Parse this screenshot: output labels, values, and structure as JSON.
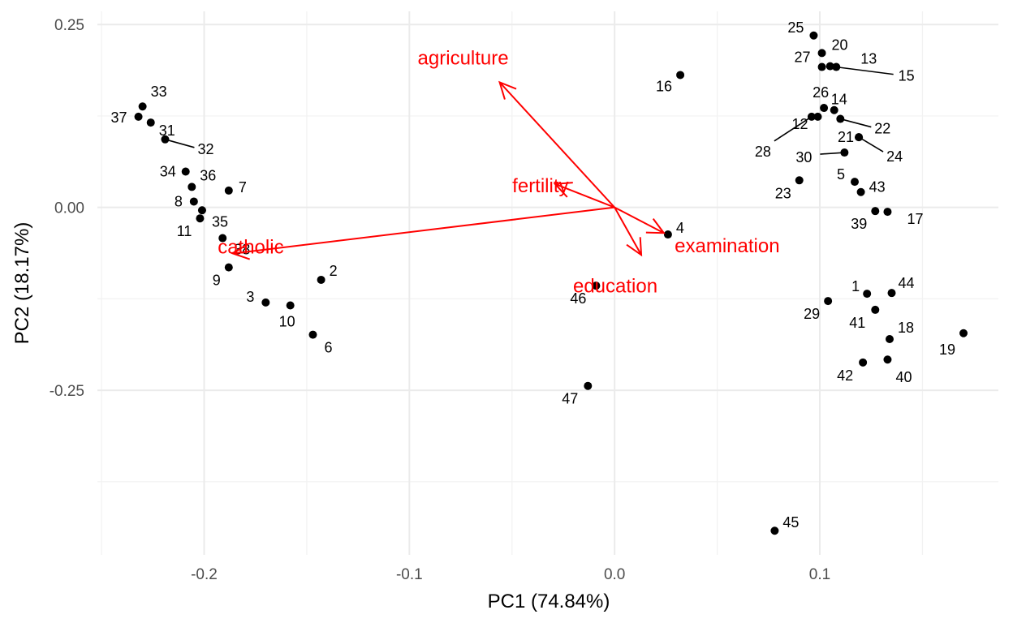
{
  "chart_data": {
    "type": "scatter",
    "title": "",
    "xlabel": "PC1 (74.84%)",
    "ylabel": "PC2 (18.17%)",
    "xlim": [
      -0.252,
      0.187
    ],
    "ylim": [
      -0.475,
      0.268
    ],
    "x_ticks": [
      -0.2,
      -0.1,
      0.0,
      0.1
    ],
    "x_tick_labels": [
      "-0.2",
      "-0.1",
      "0.0",
      "0.1"
    ],
    "y_ticks": [
      0.25,
      0.0,
      -0.25
    ],
    "y_tick_labels": [
      "0.25",
      "0.00",
      "-0.25"
    ],
    "grid": true,
    "point_color": "#000000",
    "arrow_color": "#ff0000",
    "points": [
      {
        "id": "1",
        "x": 0.123,
        "y": -0.118
      },
      {
        "id": "2",
        "x": -0.143,
        "y": -0.099
      },
      {
        "id": "3",
        "x": -0.17,
        "y": -0.13
      },
      {
        "id": "4",
        "x": 0.026,
        "y": -0.037
      },
      {
        "id": "5",
        "x": 0.117,
        "y": 0.035
      },
      {
        "id": "6",
        "x": -0.147,
        "y": -0.174
      },
      {
        "id": "7",
        "x": -0.188,
        "y": 0.023
      },
      {
        "id": "8",
        "x": -0.205,
        "y": 0.008
      },
      {
        "id": "9",
        "x": -0.188,
        "y": -0.082
      },
      {
        "id": "10",
        "x": -0.158,
        "y": -0.134
      },
      {
        "id": "11",
        "x": -0.202,
        "y": -0.015
      },
      {
        "id": "12",
        "x": 0.099,
        "y": 0.124
      },
      {
        "id": "13",
        "x": 0.108,
        "y": 0.192
      },
      {
        "id": "14",
        "x": 0.107,
        "y": 0.133
      },
      {
        "id": "15",
        "x": 0.105,
        "y": 0.193
      },
      {
        "id": "16",
        "x": 0.032,
        "y": 0.181
      },
      {
        "id": "17",
        "x": 0.133,
        "y": -0.006
      },
      {
        "id": "18",
        "x": 0.134,
        "y": -0.18
      },
      {
        "id": "19",
        "x": 0.17,
        "y": -0.172
      },
      {
        "id": "20",
        "x": 0.101,
        "y": 0.211
      },
      {
        "id": "21",
        "x": 0.119,
        "y": 0.096
      },
      {
        "id": "22",
        "x": 0.11,
        "y": 0.121
      },
      {
        "id": "23",
        "x": 0.09,
        "y": 0.037
      },
      {
        "id": "24",
        "x": 0.119,
        "y": 0.096
      },
      {
        "id": "25",
        "x": 0.097,
        "y": 0.235
      },
      {
        "id": "26",
        "x": 0.102,
        "y": 0.136
      },
      {
        "id": "27",
        "x": 0.101,
        "y": 0.192
      },
      {
        "id": "28",
        "x": 0.096,
        "y": 0.124
      },
      {
        "id": "29",
        "x": 0.104,
        "y": -0.128
      },
      {
        "id": "30",
        "x": 0.112,
        "y": 0.075
      },
      {
        "id": "31",
        "x": -0.226,
        "y": 0.116
      },
      {
        "id": "32",
        "x": -0.219,
        "y": 0.093
      },
      {
        "id": "33",
        "x": -0.23,
        "y": 0.138
      },
      {
        "id": "34",
        "x": -0.209,
        "y": 0.049
      },
      {
        "id": "35",
        "x": -0.201,
        "y": -0.004
      },
      {
        "id": "36",
        "x": -0.206,
        "y": 0.028
      },
      {
        "id": "37",
        "x": -0.232,
        "y": 0.124
      },
      {
        "id": "38",
        "x": -0.191,
        "y": -0.042
      },
      {
        "id": "39",
        "x": 0.127,
        "y": -0.005
      },
      {
        "id": "40",
        "x": 0.133,
        "y": -0.208
      },
      {
        "id": "41",
        "x": 0.127,
        "y": -0.14
      },
      {
        "id": "42",
        "x": 0.121,
        "y": -0.212
      },
      {
        "id": "43",
        "x": 0.12,
        "y": 0.021
      },
      {
        "id": "44",
        "x": 0.135,
        "y": -0.117
      },
      {
        "id": "45",
        "x": 0.078,
        "y": -0.442
      },
      {
        "id": "46",
        "x": -0.009,
        "y": -0.107
      },
      {
        "id": "47",
        "x": -0.013,
        "y": -0.244
      }
    ],
    "loadings": [
      {
        "name": "agriculture",
        "x": -0.056,
        "y": 0.171
      },
      {
        "name": "fertility",
        "x": -0.029,
        "y": 0.032
      },
      {
        "name": "examination",
        "x": 0.024,
        "y": -0.035
      },
      {
        "name": "education",
        "x": 0.013,
        "y": -0.065
      },
      {
        "name": "catholic",
        "x": -0.186,
        "y": -0.063
      }
    ]
  }
}
